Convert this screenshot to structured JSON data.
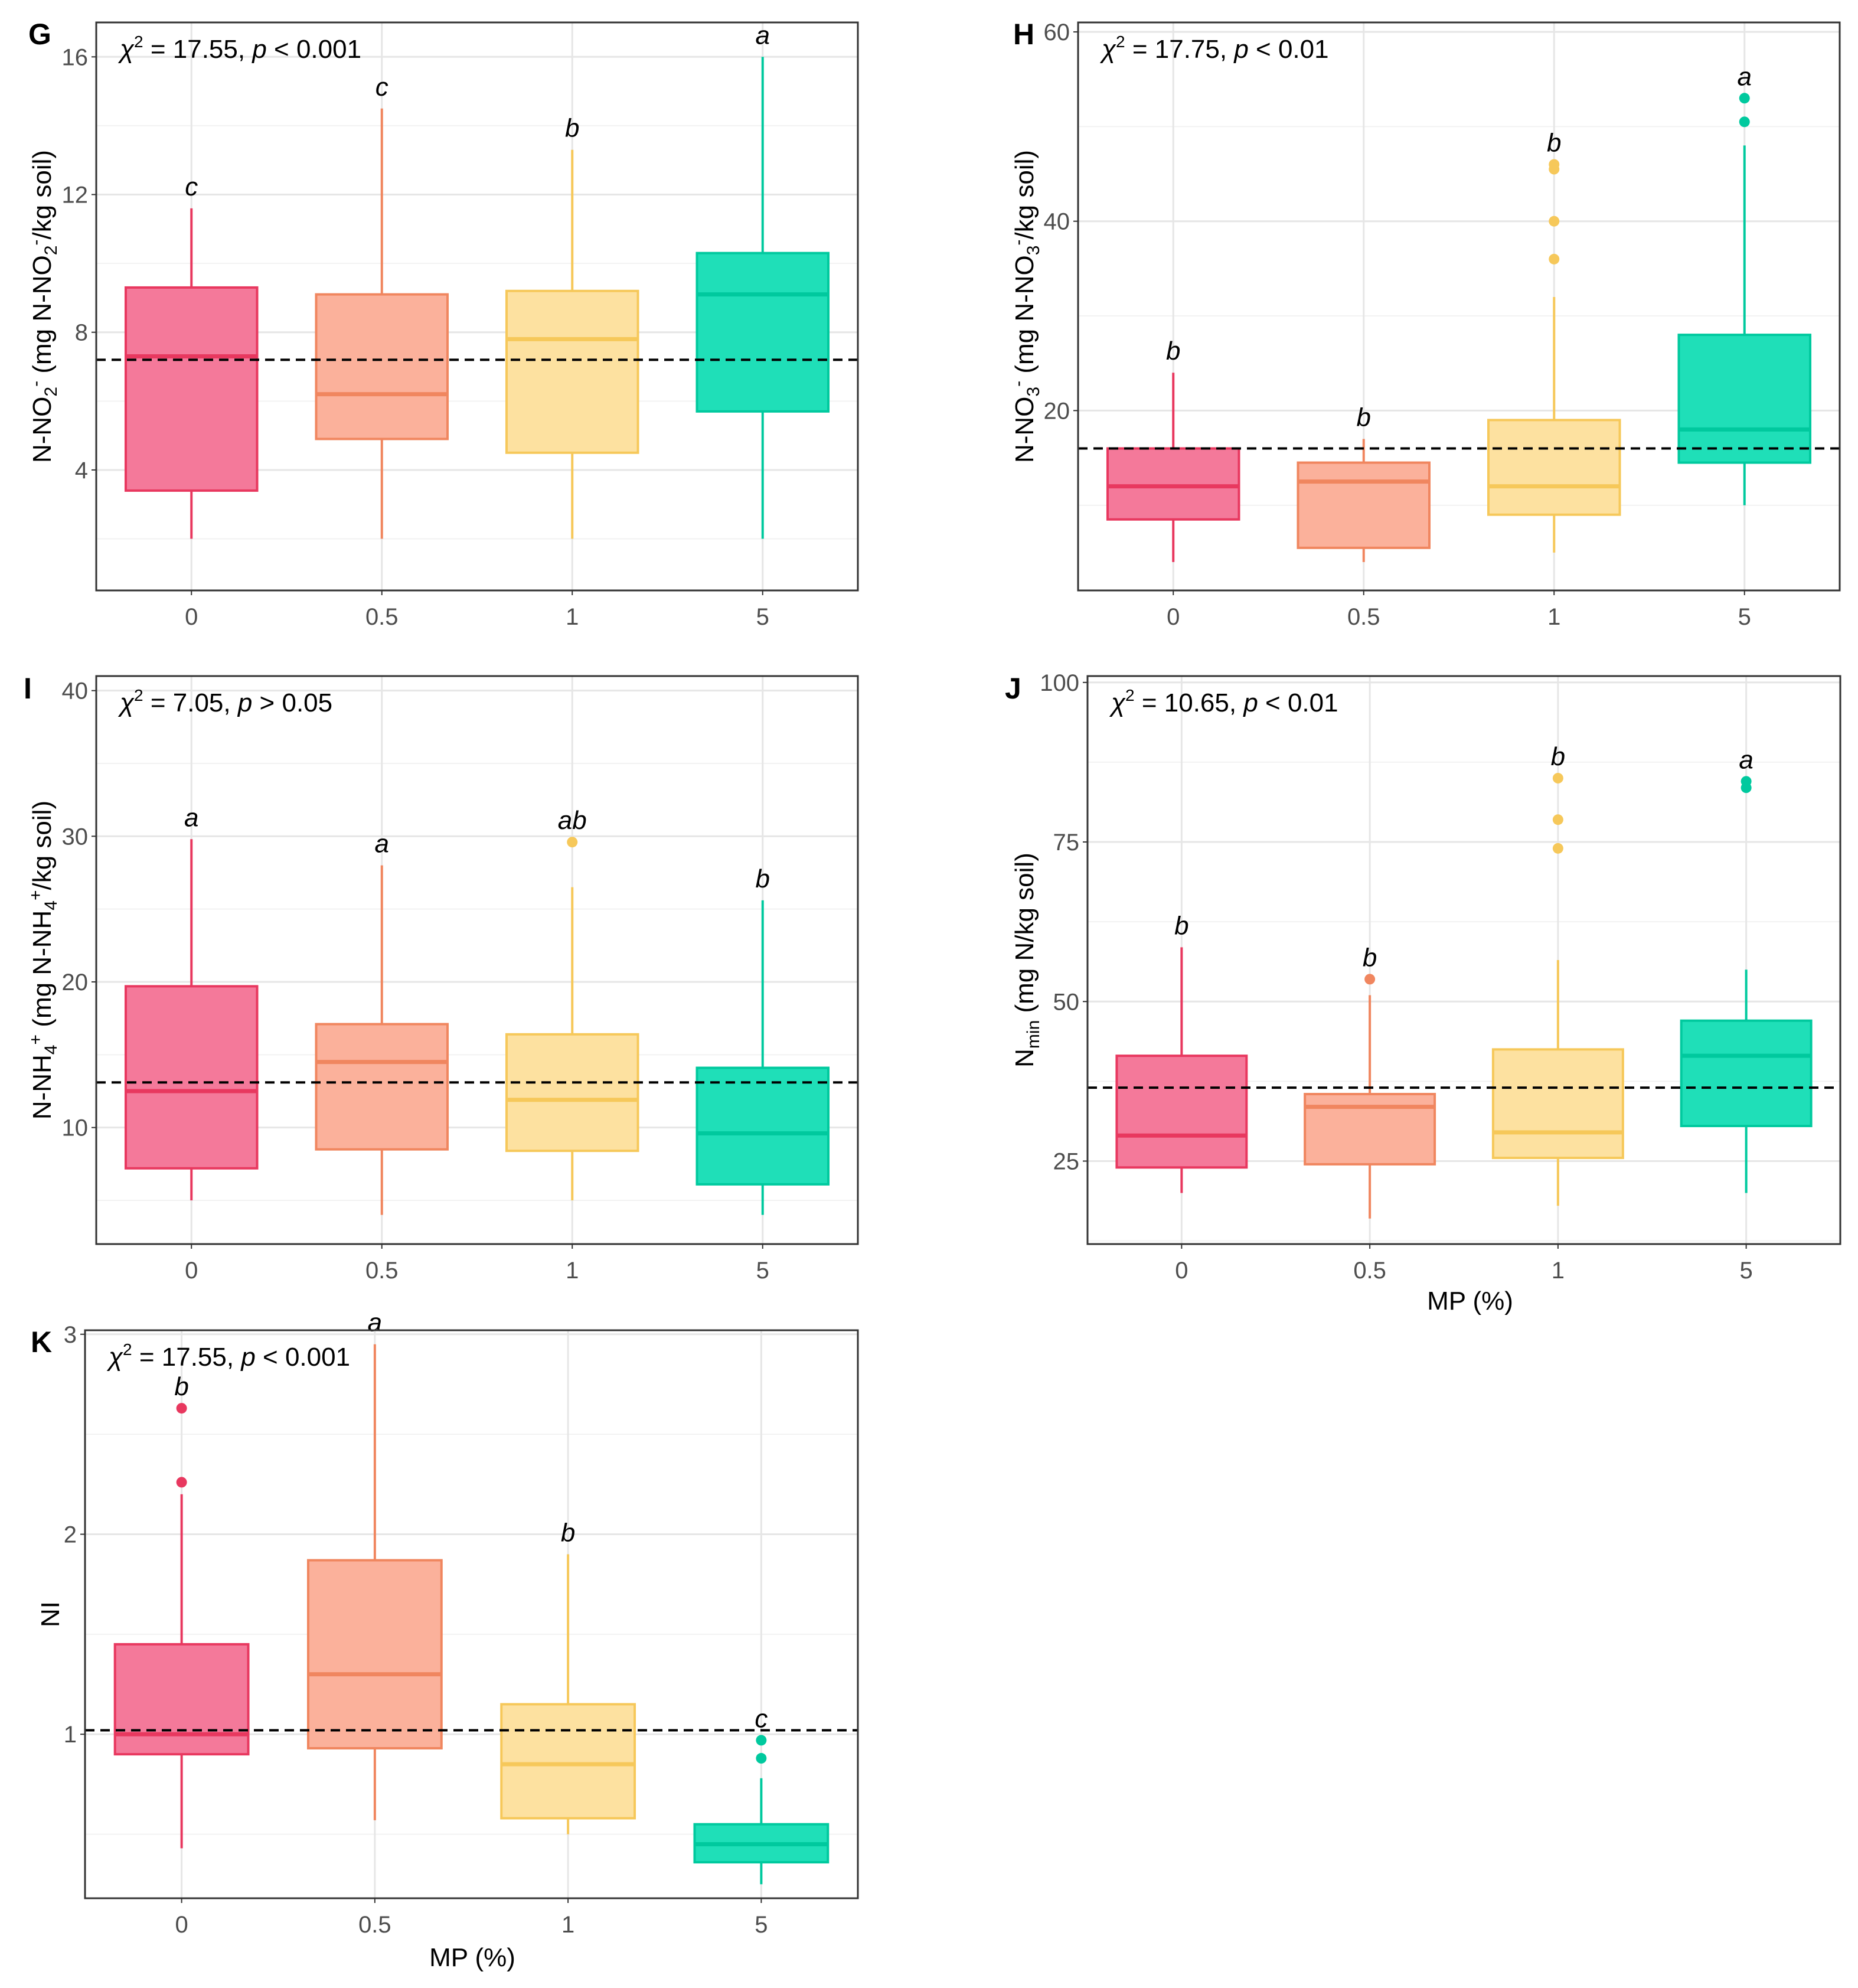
{
  "figure": {
    "x_label": "MP (%)",
    "groups": [
      "0",
      "0.5",
      "1",
      "5"
    ],
    "colors": {
      "0": {
        "fill": "#f4799a",
        "stroke": "#e8385f"
      },
      "0.5": {
        "fill": "#fbb19b",
        "stroke": "#f0865f"
      },
      "1": {
        "fill": "#fde1a0",
        "stroke": "#f6c85a"
      },
      "5": {
        "fill": "#1fdfb8",
        "stroke": "#00c99e"
      }
    }
  },
  "chart_data": [
    {
      "panel": "G",
      "type": "box",
      "stat_label": "χ² = 17.55, p < 0.001",
      "stat": {
        "chi_symbol": "χ",
        "chi_sup": "2",
        "chi_value": " = 17.55, ",
        "p_symbol": "p",
        "p_value": " < 0.001"
      },
      "ylabel": {
        "main": "N-NO",
        "sub": "2",
        "sup": "-",
        "rest1": " (mg N-NO",
        "sub2": "2",
        "sup2": "-",
        "rest2": "/kg soil)"
      },
      "ylim": [
        0.5,
        17
      ],
      "yticks": [
        4,
        8,
        12,
        16
      ],
      "reference_line": 7.2,
      "x_title": "",
      "boxes": [
        {
          "group": "0",
          "min": 2.0,
          "q1": 3.4,
          "median": 7.3,
          "q3": 9.3,
          "max": 11.6,
          "outliers": [],
          "letter": "c"
        },
        {
          "group": "0.5",
          "min": 2.0,
          "q1": 4.9,
          "median": 6.2,
          "q3": 9.1,
          "max": 14.5,
          "outliers": [],
          "letter": "c"
        },
        {
          "group": "1",
          "min": 2.0,
          "q1": 4.5,
          "median": 7.8,
          "q3": 9.2,
          "max": 13.3,
          "outliers": [],
          "letter": "b"
        },
        {
          "group": "5",
          "min": 2.0,
          "q1": 5.7,
          "median": 9.1,
          "q3": 10.3,
          "max": 16.0,
          "outliers": [],
          "letter": "a"
        }
      ]
    },
    {
      "panel": "H",
      "type": "box",
      "stat_label": "χ² = 17.75, p < 0.01",
      "stat": {
        "chi_symbol": "χ",
        "chi_sup": "2",
        "chi_value": " = 17.75, ",
        "p_symbol": "p",
        "p_value": " < 0.01"
      },
      "ylabel": {
        "main": "N-NO",
        "sub": "3",
        "sup": "-",
        "rest1": " (mg N-NO",
        "sub2": "3",
        "sup2": "-",
        "rest2": "/kg soil)"
      },
      "ylim": [
        1,
        61
      ],
      "yticks": [
        20,
        40,
        60
      ],
      "reference_line": 16,
      "x_title": "",
      "boxes": [
        {
          "group": "0",
          "min": 4,
          "q1": 8.5,
          "median": 12,
          "q3": 16,
          "max": 24,
          "outliers": [],
          "letter": "b"
        },
        {
          "group": "0.5",
          "min": 4,
          "q1": 5.5,
          "median": 12.5,
          "q3": 14.5,
          "max": 17,
          "outliers": [],
          "letter": "b"
        },
        {
          "group": "1",
          "min": 5,
          "q1": 9,
          "median": 12,
          "q3": 19,
          "max": 32,
          "outliers": [
            36,
            40,
            45.5,
            46
          ],
          "letter": "b"
        },
        {
          "group": "5",
          "min": 10,
          "q1": 14.5,
          "median": 18,
          "q3": 28,
          "max": 48,
          "outliers": [
            50.5,
            53
          ],
          "letter": "a"
        }
      ]
    },
    {
      "panel": "I",
      "type": "box",
      "stat_label": "χ² = 7.05, p > 0.05",
      "stat": {
        "chi_symbol": "χ",
        "chi_sup": "2",
        "chi_value": " = 7.05, ",
        "p_symbol": "p",
        "p_value": " > 0.05"
      },
      "ylabel": {
        "main": "N-NH",
        "sub": "4",
        "sup": "+",
        "rest1": " (mg N-NH",
        "sub2": "4",
        "sup2": "+",
        "rest2": "/kg soil)"
      },
      "ylim": [
        2,
        41
      ],
      "yticks": [
        10,
        20,
        30,
        40
      ],
      "reference_line": 13.1,
      "x_title": "",
      "boxes": [
        {
          "group": "0",
          "min": 5,
          "q1": 7.2,
          "median": 12.5,
          "q3": 19.7,
          "max": 29.8,
          "outliers": [],
          "letter": "a"
        },
        {
          "group": "0.5",
          "min": 4,
          "q1": 8.5,
          "median": 14.5,
          "q3": 17.1,
          "max": 28.0,
          "outliers": [],
          "letter": "a"
        },
        {
          "group": "1",
          "min": 5,
          "q1": 8.4,
          "median": 11.9,
          "q3": 16.4,
          "max": 26.5,
          "outliers": [
            29.6
          ],
          "letter": "ab"
        },
        {
          "group": "5",
          "min": 4,
          "q1": 6.1,
          "median": 9.6,
          "q3": 14.1,
          "max": 25.6,
          "outliers": [],
          "letter": "b"
        }
      ]
    },
    {
      "panel": "J",
      "type": "box",
      "stat_label": "χ² = 10.65, p < 0.01",
      "stat": {
        "chi_symbol": "χ",
        "chi_sup": "2",
        "chi_value": " = 10.65, ",
        "p_symbol": "p",
        "p_value": " < 0.01"
      },
      "ylabel": {
        "main": "N",
        "sub": "min",
        "sup": "",
        "rest1": " (mg N/kg soil)",
        "sub2": "",
        "sup2": "",
        "rest2": ""
      },
      "ylim": [
        12,
        101
      ],
      "yticks": [
        25,
        50,
        75,
        100
      ],
      "reference_line": 36.5,
      "x_title": "MP (%)",
      "boxes": [
        {
          "group": "0",
          "min": 20,
          "q1": 24,
          "median": 29,
          "q3": 41.5,
          "max": 58.5,
          "outliers": [],
          "letter": "b"
        },
        {
          "group": "0.5",
          "min": 16,
          "q1": 24.5,
          "median": 33.5,
          "q3": 35.5,
          "max": 51,
          "outliers": [
            53.5
          ],
          "letter": "b"
        },
        {
          "group": "1",
          "min": 18,
          "q1": 25.5,
          "median": 29.5,
          "q3": 42.5,
          "max": 56.5,
          "outliers": [
            74,
            78.5,
            85
          ],
          "letter": "b"
        },
        {
          "group": "5",
          "min": 20,
          "q1": 30.5,
          "median": 41.5,
          "q3": 47,
          "max": 55,
          "outliers": [
            83.5,
            84.5
          ],
          "letter": "a"
        }
      ]
    },
    {
      "panel": "K",
      "type": "box",
      "stat_label": "χ² = 17.55, p < 0.001",
      "stat": {
        "chi_symbol": "χ",
        "chi_sup": "2",
        "chi_value": " = 17.55, ",
        "p_symbol": "p",
        "p_value": " < 0.001"
      },
      "ylabel": {
        "main": "NI",
        "sub": "",
        "sup": "",
        "rest1": "",
        "sub2": "",
        "sup2": "",
        "rest2": ""
      },
      "ylim": [
        0.18,
        3.02
      ],
      "yticks": [
        1,
        2,
        3
      ],
      "reference_line": 1.02,
      "x_title": "MP (%)",
      "boxes": [
        {
          "group": "0",
          "min": 0.43,
          "q1": 0.9,
          "median": 1.0,
          "q3": 1.45,
          "max": 2.2,
          "outliers": [
            2.26,
            2.63
          ],
          "letter": "b"
        },
        {
          "group": "0.5",
          "min": 0.57,
          "q1": 0.93,
          "median": 1.3,
          "q3": 1.87,
          "max": 2.95,
          "outliers": [],
          "letter": "a"
        },
        {
          "group": "1",
          "min": 0.5,
          "q1": 0.58,
          "median": 0.85,
          "q3": 1.15,
          "max": 1.9,
          "outliers": [],
          "letter": "b"
        },
        {
          "group": "5",
          "min": 0.25,
          "q1": 0.36,
          "median": 0.45,
          "q3": 0.55,
          "max": 0.78,
          "outliers": [
            0.88,
            0.97
          ],
          "letter": "c"
        }
      ]
    }
  ]
}
